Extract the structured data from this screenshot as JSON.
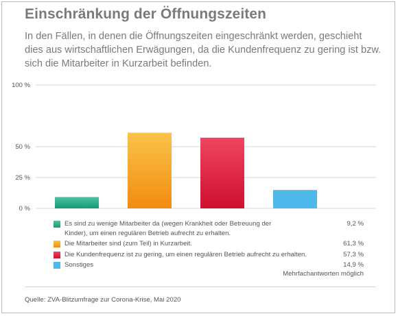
{
  "title": "Einschränkung der Öffnungszeiten",
  "subtitle": "In den Fällen, in denen die Öffnungszeiten eingeschränkt werden, geschieht dies aus wirtschaftlichen Erwägungen, da die Kundenfrequenz zu gering ist bzw. sich die Mitarbeiter in Kurzarbeit befinden.",
  "note": "Mehrfachantworten möglich",
  "source": "Quelle: ZVA-Blitzumfrage zur Corona-Krise, Mai 2020",
  "chart_data": {
    "type": "bar",
    "title": "Einschränkung der Öffnungszeiten",
    "xlabel": "",
    "ylabel": "",
    "ylim": [
      0,
      100
    ],
    "yticks": [
      {
        "value": 0,
        "label": "0 %"
      },
      {
        "value": 25,
        "label": "25 %"
      },
      {
        "value": 50,
        "label": "50 %"
      },
      {
        "value": 100,
        "label": "100 %"
      }
    ],
    "grid": true,
    "legend_position": "bottom",
    "categories": [
      "Es sind zu wenige Mitarbeiter da (wegen Krankheit oder Betreuung der Kinder), um einen regulären Betrieb aufrecht zu erhalten.",
      "Die Mitarbeiter sind (zum Teil) in Kurzarbeit.",
      "Die Kundenfrequenz ist zu gering, um einen regulären Betrieb aufrecht zu erhalten.",
      "Sonstiges"
    ],
    "values": [
      9.2,
      61.3,
      57.3,
      14.9
    ],
    "value_labels": [
      "9,2 %",
      "61,3 %",
      "57,3 %",
      "14,9 %"
    ],
    "colors": [
      [
        "#4cc4a2",
        "#169a74"
      ],
      [
        "#fbc24a",
        "#f28c10"
      ],
      [
        "#ee4560",
        "#cf102f"
      ],
      [
        "#4fb8ea",
        "#4fb8ea"
      ]
    ]
  }
}
